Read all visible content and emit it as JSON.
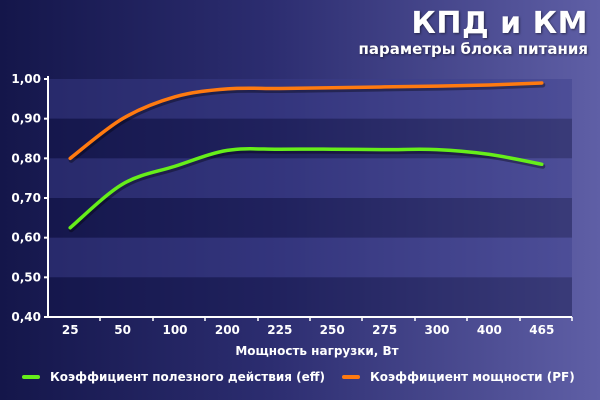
{
  "header": {
    "title": "КПД и КМ",
    "subtitle": "параметры блока питания"
  },
  "chart_data": {
    "type": "line",
    "title": "КПД и КМ",
    "subtitle": "параметры блока питания",
    "xlabel": "Мощность нагрузки, Вт",
    "ylabel": "",
    "categories": [
      "25",
      "50",
      "100",
      "200",
      "225",
      "250",
      "275",
      "300",
      "400",
      "465"
    ],
    "ylim": [
      0.4,
      1.0
    ],
    "yticks": [
      "1,00",
      "0,90",
      "0,80",
      "0,70",
      "0,60",
      "0,50",
      "0,40"
    ],
    "grid": "horizontal-bands",
    "legend": "bottom",
    "series": [
      {
        "name": "Коэффициент полезного действия (eff)",
        "color": "#66ee1a",
        "values": [
          0.625,
          0.735,
          0.78,
          0.82,
          0.823,
          0.823,
          0.822,
          0.822,
          0.81,
          0.785
        ]
      },
      {
        "name": "Коэффициент мощности (PF)",
        "color": "#ff7a10",
        "values": [
          0.8,
          0.9,
          0.955,
          0.975,
          0.976,
          0.978,
          0.98,
          0.982,
          0.985,
          0.99
        ]
      }
    ]
  }
}
